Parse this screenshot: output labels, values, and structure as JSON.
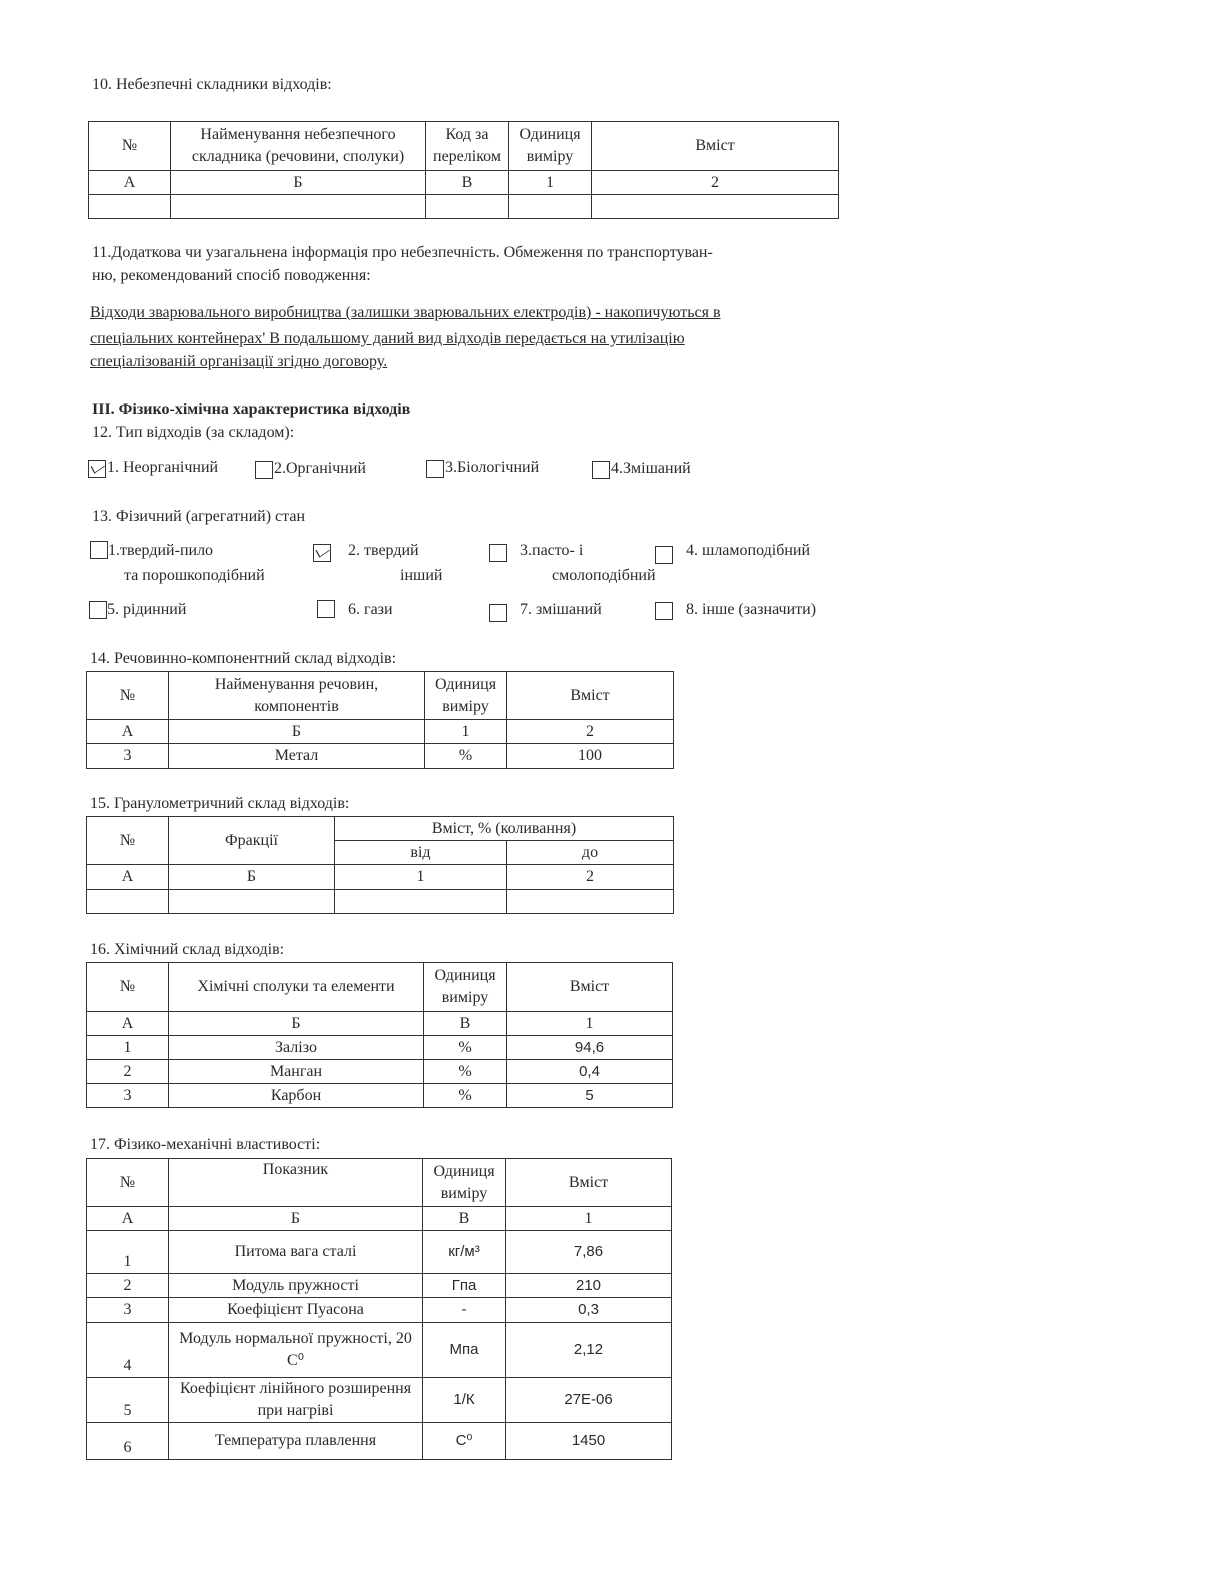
{
  "s10": {
    "title": "10. Небезпечні складники відходів:",
    "header": [
      "№",
      "Найменування небезпечного складника (речовини, сполуки)",
      "Код за переліком",
      "Одиниця виміру",
      "Вміст"
    ],
    "rows": [
      [
        "А",
        "Б",
        "В",
        "1",
        "2"
      ],
      [
        "",
        "",
        "",
        "",
        ""
      ]
    ]
  },
  "s11": {
    "title_line1": "11.Додаткова чи узагальнена інформація про небезпечність. Обмеження по транспортуван-",
    "title_line2": "ню, рекомендований спосіб поводження:",
    "text_line1": "Відходи зварювального виробництва (залишки зварювальних електродів) - накопичуються в",
    "text_line2": "спеціальних контейнерах' В подальшому даний вид відходів передається на утилізацію",
    "text_line3": "спеціалізованій організації згідно договору."
  },
  "s3": {
    "heading": "ІІІ. Фізико-хімічна характеристика відходів"
  },
  "s12": {
    "title": "12. Тип відходів (за складом):",
    "options": [
      {
        "label": "1. Неорганічний",
        "checked": true
      },
      {
        "label": "2.Органічний",
        "checked": false
      },
      {
        "label": "3.Біологічний",
        "checked": false
      },
      {
        "label": "4.Змішаний",
        "checked": false
      }
    ]
  },
  "s13": {
    "title": "13. Фізичний (агрегатний) стан",
    "options": [
      {
        "label": "1.твердий-пило",
        "label2": "та порошкоподібний",
        "checked": false
      },
      {
        "label": "2. твердий",
        "label2": "інший",
        "checked": true
      },
      {
        "label": "3.пасто- і",
        "label2": "смолоподібний",
        "checked": false
      },
      {
        "label": "4. шламоподібний",
        "label2": "",
        "checked": false
      },
      {
        "label": "5. рідинний",
        "label2": "",
        "checked": false
      },
      {
        "label": "6. гази",
        "label2": "",
        "checked": false
      },
      {
        "label": "7. змішаний",
        "label2": "",
        "checked": false
      },
      {
        "label": "8. інше (зазначити)",
        "label2": "",
        "checked": false
      }
    ]
  },
  "s14": {
    "title": "14. Речовинно-компонентний склад відходів:",
    "header": [
      "№",
      "Найменування речовин, компонентів",
      "Одиниця виміру",
      "Вміст"
    ],
    "rows": [
      [
        "А",
        "Б",
        "1",
        "2"
      ],
      [
        "3",
        "Метал",
        "%",
        "100"
      ]
    ]
  },
  "s15": {
    "title": "15. Гранулометричний склад відходів:",
    "header": [
      "№",
      "Фракції",
      "Вміст, % (коливання)",
      "від",
      "до"
    ],
    "rows": [
      [
        "А",
        "Б",
        "1",
        "2"
      ],
      [
        "",
        "",
        "",
        ""
      ]
    ]
  },
  "s16": {
    "title": "16. Хімічний склад відходів:",
    "header": [
      "№",
      "Хімічні сполуки та елементи",
      "Одиниця виміру",
      "Вміст"
    ],
    "rows": [
      [
        "А",
        "Б",
        "В",
        "1"
      ],
      [
        "1",
        "Залізо",
        "%",
        "94,6"
      ],
      [
        "2",
        "Манган",
        "%",
        "0,4"
      ],
      [
        "3",
        "Карбон",
        "%",
        "5"
      ]
    ]
  },
  "s17": {
    "title": "17. Фізико-механічні властивості:",
    "header": [
      "№",
      "Показник",
      "Одиниця виміру",
      "Вміст"
    ],
    "rows": [
      [
        "А",
        "Б",
        "В",
        "1"
      ],
      [
        "1",
        "Питома вага сталі",
        "кг/м³",
        "7,86"
      ],
      [
        "2",
        "Модуль пружності",
        "Гпа",
        "210"
      ],
      [
        "3",
        "Коефіцієнт Пуасона",
        "-",
        "0,3"
      ],
      [
        "4",
        "Модуль нормальної пружності, 20 С⁰",
        "Мпа",
        "2,12"
      ],
      [
        "5",
        "Коефіцієнт лінійного розширення при нагріві",
        "1/К",
        "27E-06"
      ],
      [
        "6",
        "Температура плавлення",
        "С⁰",
        "1450"
      ]
    ]
  }
}
